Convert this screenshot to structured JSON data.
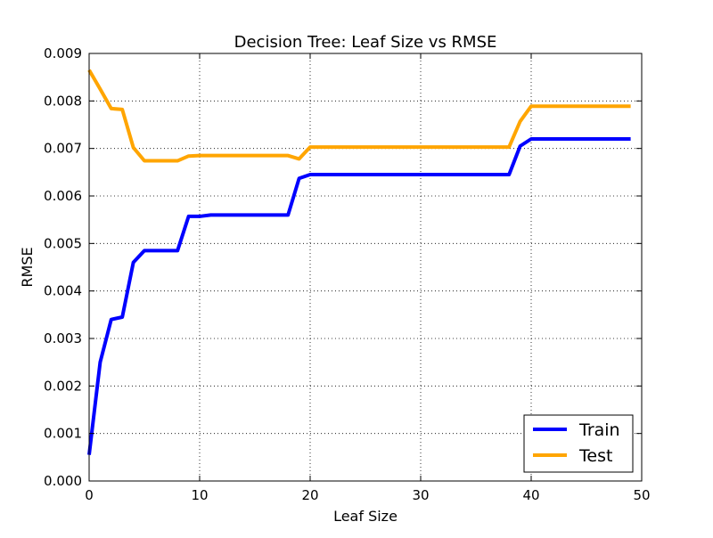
{
  "chart_data": {
    "type": "line",
    "title": "Decision Tree: Leaf Size vs RMSE",
    "xlabel": "Leaf Size",
    "ylabel": "RMSE",
    "xlim": [
      0,
      50
    ],
    "ylim": [
      0,
      0.009
    ],
    "xticks": [
      0,
      10,
      20,
      30,
      40,
      50
    ],
    "xtick_labels": [
      "0",
      "10",
      "20",
      "30",
      "40",
      "50"
    ],
    "yticks": [
      0,
      0.001,
      0.002,
      0.003,
      0.004,
      0.005,
      0.006,
      0.007,
      0.008,
      0.009
    ],
    "ytick_labels": [
      "0.000",
      "0.001",
      "0.002",
      "0.003",
      "0.004",
      "0.005",
      "0.006",
      "0.007",
      "0.008",
      "0.009"
    ],
    "grid": true,
    "legend_position": "lower-right",
    "x": [
      0,
      1,
      2,
      3,
      4,
      5,
      6,
      7,
      8,
      9,
      10,
      11,
      12,
      13,
      14,
      15,
      16,
      17,
      18,
      19,
      20,
      21,
      22,
      23,
      24,
      25,
      26,
      27,
      28,
      29,
      30,
      31,
      32,
      33,
      34,
      35,
      36,
      37,
      38,
      39,
      40,
      41,
      42,
      43,
      44,
      45,
      46,
      47,
      48,
      49
    ],
    "series": [
      {
        "name": "Train",
        "color": "#0000ff",
        "values": [
          0.00055,
          0.0025,
          0.0034,
          0.00345,
          0.0046,
          0.00485,
          0.00485,
          0.00485,
          0.00485,
          0.00557,
          0.00557,
          0.0056,
          0.0056,
          0.0056,
          0.0056,
          0.0056,
          0.0056,
          0.0056,
          0.0056,
          0.00637,
          0.00645,
          0.00645,
          0.00645,
          0.00645,
          0.00645,
          0.00645,
          0.00645,
          0.00645,
          0.00645,
          0.00645,
          0.00645,
          0.00645,
          0.00645,
          0.00645,
          0.00645,
          0.00645,
          0.00645,
          0.00645,
          0.00645,
          0.00705,
          0.0072,
          0.0072,
          0.0072,
          0.0072,
          0.0072,
          0.0072,
          0.0072,
          0.0072,
          0.0072,
          0.0072
        ]
      },
      {
        "name": "Test",
        "color": "#ffa500",
        "values": [
          0.00865,
          0.00825,
          0.00784,
          0.00782,
          0.00702,
          0.00674,
          0.00674,
          0.00674,
          0.00674,
          0.00684,
          0.00685,
          0.00685,
          0.00685,
          0.00685,
          0.00685,
          0.00685,
          0.00685,
          0.00685,
          0.00685,
          0.00678,
          0.00703,
          0.00703,
          0.00703,
          0.00703,
          0.00703,
          0.00703,
          0.00703,
          0.00703,
          0.00703,
          0.00703,
          0.00703,
          0.00703,
          0.00703,
          0.00703,
          0.00703,
          0.00703,
          0.00703,
          0.00703,
          0.00703,
          0.00757,
          0.00789,
          0.00789,
          0.00789,
          0.00789,
          0.00789,
          0.00789,
          0.00789,
          0.00789,
          0.00789,
          0.00789
        ]
      }
    ]
  }
}
